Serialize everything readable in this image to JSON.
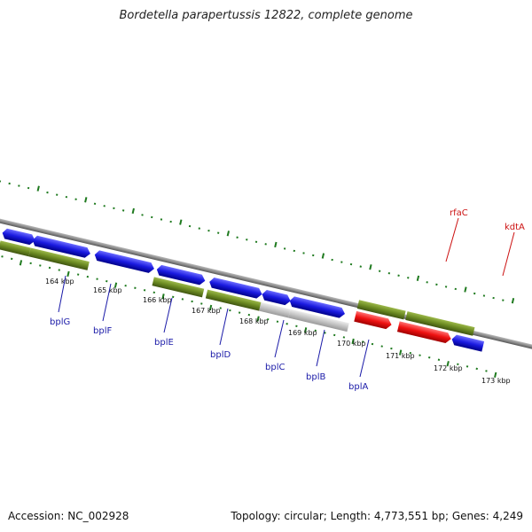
{
  "title": "Bordetella parapertussis 12822, complete genome",
  "footer": {
    "accession": "Accession: NC_002928",
    "summary": "Topology: circular; Length: 4,773,551 bp; Genes: 4,249"
  },
  "colors": {
    "forward_cds": "#1a1ae0",
    "gene_olive": "#6b8a22",
    "highlight_red": "#ee1111",
    "pseudo_gray": "#bdbdbd",
    "backbone": "#8c8c8c",
    "tick_green": "#1f7a1f",
    "label_blue": "#1a1aa8",
    "label_red": "#cc1111"
  },
  "kbp_ticks": [
    {
      "kbp": 164,
      "label": "164 kbp"
    },
    {
      "kbp": 165,
      "label": "165 kbp"
    },
    {
      "kbp": 166,
      "label": "166 kbp"
    },
    {
      "kbp": 167,
      "label": "167 kbp"
    },
    {
      "kbp": 168,
      "label": "168 kbp"
    },
    {
      "kbp": 169,
      "label": "169 kbp"
    },
    {
      "kbp": 170,
      "label": "170 kbp"
    },
    {
      "kbp": 171,
      "label": "171 kbp"
    },
    {
      "kbp": 172,
      "label": "172 kbp"
    },
    {
      "kbp": 173,
      "label": "173 kbp"
    }
  ],
  "gene_labels": [
    {
      "name": "bplG",
      "color": "blue"
    },
    {
      "name": "bplF",
      "color": "blue"
    },
    {
      "name": "bplE",
      "color": "blue"
    },
    {
      "name": "bplD",
      "color": "blue"
    },
    {
      "name": "bplC",
      "color": "blue"
    },
    {
      "name": "bplB",
      "color": "blue"
    },
    {
      "name": "bplA",
      "color": "blue"
    },
    {
      "name": "rfaC",
      "color": "red"
    },
    {
      "name": "kdtA",
      "color": "red"
    }
  ]
}
